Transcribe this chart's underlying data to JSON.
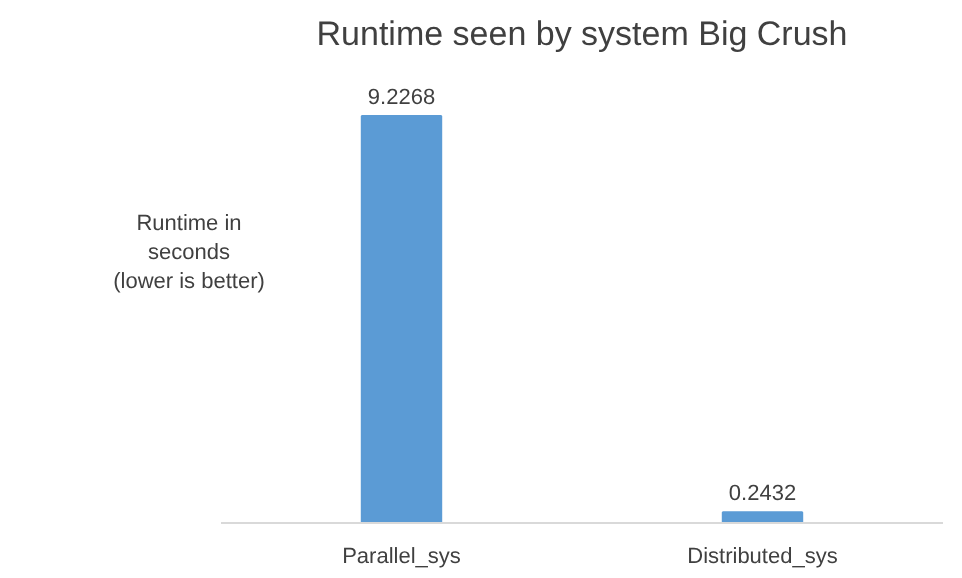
{
  "chart_data": {
    "type": "bar",
    "title": "Runtime seen by system Big Crush",
    "ylabel": "Runtime in\nseconds\n(lower is better)",
    "categories": [
      "Parallel_sys",
      "Distributed_sys"
    ],
    "values": [
      9.2268,
      0.2432
    ],
    "color": "#5b9bd5",
    "tick_labels": "x",
    "data_labels": true,
    "grid": false
  }
}
